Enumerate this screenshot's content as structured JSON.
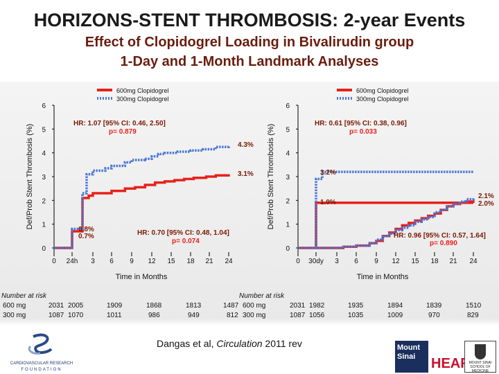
{
  "title": "HORIZONS-STENT THROMBOSIS: 2-year Events",
  "subtitle_line1": "Effect of Clopidogrel Loading in Bivalirudin group",
  "subtitle_line2": "1-Day and 1-Month Landmark Analyses",
  "colors": {
    "red": "#e8201a",
    "blue": "#4a78d6",
    "hr": "#7b1800"
  },
  "chart_data": [
    {
      "type": "line",
      "step": true,
      "ylabel": "Def/Prob Stent Thrombosis (%)",
      "xlabel": "Time in Months",
      "xlim": [
        0,
        24
      ],
      "ylim": [
        0,
        6
      ],
      "xticks": [
        0,
        1,
        3,
        6,
        9,
        12,
        15,
        18,
        21,
        24
      ],
      "xtick_labels": [
        "0",
        "24h",
        "3",
        "6",
        "9",
        "12",
        "15",
        "18",
        "21",
        "24"
      ],
      "yticks": [
        0,
        1,
        2,
        3,
        4,
        5,
        6
      ],
      "ytick_labels": [
        "0",
        "1",
        "2",
        "3",
        "4",
        "5",
        "6"
      ],
      "legend": {
        "position": "top-left",
        "entries": [
          "600mg Clopidogrel",
          "300mg Clopidogrel"
        ]
      },
      "series": [
        {
          "name": "600mg Clopidogrel",
          "style": "solid",
          "points": [
            [
              0,
              0
            ],
            [
              0.7,
              0
            ],
            [
              1.0,
              0.7
            ],
            [
              1.6,
              0.7
            ],
            [
              2.0,
              2.1
            ],
            [
              2.6,
              2.2
            ],
            [
              3,
              2.3
            ],
            [
              5,
              2.3
            ],
            [
              6,
              2.4
            ],
            [
              8,
              2.5
            ],
            [
              9.5,
              2.55
            ],
            [
              11,
              2.65
            ],
            [
              12.5,
              2.75
            ],
            [
              14,
              2.8
            ],
            [
              15.5,
              2.85
            ],
            [
              17,
              2.9
            ],
            [
              18.5,
              2.95
            ],
            [
              20.5,
              3.0
            ],
            [
              22,
              3.05
            ],
            [
              24,
              3.1
            ]
          ]
        },
        {
          "name": "300mg Clopidogrel",
          "style": "dotted",
          "points": [
            [
              0,
              0
            ],
            [
              0.7,
              0
            ],
            [
              1.0,
              0.8
            ],
            [
              1.6,
              0.8
            ],
            [
              2.0,
              2.3
            ],
            [
              2.4,
              3.1
            ],
            [
              3,
              3.25
            ],
            [
              5,
              3.35
            ],
            [
              6,
              3.45
            ],
            [
              8,
              3.6
            ],
            [
              9,
              3.7
            ],
            [
              11,
              3.75
            ],
            [
              12,
              3.85
            ],
            [
              13,
              3.95
            ],
            [
              14,
              4.0
            ],
            [
              16,
              4.05
            ],
            [
              18,
              4.1
            ],
            [
              20,
              4.15
            ],
            [
              22,
              4.25
            ],
            [
              24,
              4.3
            ]
          ]
        }
      ],
      "annotations": [
        {
          "text": "HR: 1.07 [95% CI: 0.46, 2.50]",
          "kind": "hr"
        },
        {
          "text": "p= 0.879",
          "kind": "p"
        },
        {
          "text": "4.3%",
          "kind": "end-label"
        },
        {
          "text": "3.1%",
          "kind": "end-label"
        },
        {
          "text": "0.8%",
          "kind": "landmark-label"
        },
        {
          "text": "0.7%",
          "kind": "landmark-label"
        },
        {
          "text": "HR: 0.70 [95% CI: 0.48, 1.04]",
          "kind": "hr"
        },
        {
          "text": "p= 0.074",
          "kind": "p"
        }
      ]
    },
    {
      "type": "line",
      "step": true,
      "ylabel": "Def/Prob Stent Thrombosis (%)",
      "xlabel": "Time in Months",
      "xlim": [
        0,
        24
      ],
      "ylim": [
        0,
        6
      ],
      "xticks": [
        0,
        1,
        3,
        6,
        9,
        12,
        15,
        18,
        21,
        24
      ],
      "xtick_labels": [
        "0",
        "30dy",
        "3",
        "6",
        "9",
        "12",
        "15",
        "18",
        "21",
        "24"
      ],
      "yticks": [
        0,
        1,
        2,
        3,
        4,
        5,
        6
      ],
      "ytick_labels": [
        "0",
        "1",
        "2",
        "3",
        "4",
        "5",
        "6"
      ],
      "legend": {
        "position": "top-right",
        "entries": [
          "600mg Clopidogrel",
          "300mg Clopidogrel"
        ]
      },
      "series": [
        {
          "name": "600mg Clopidogrel",
          "style": "solid",
          "points": [
            [
              0,
              0
            ],
            [
              0.6,
              0
            ],
            [
              1.0,
              1.9
            ],
            [
              3,
              1.9
            ],
            [
              6,
              1.9
            ],
            [
              9,
              1.9
            ],
            [
              12,
              1.9
            ],
            [
              15,
              1.9
            ],
            [
              21,
              1.9
            ],
            [
              24,
              1.9
            ]
          ]
        },
        {
          "name": "300mg Clopidogrel",
          "style": "dotted",
          "points": [
            [
              0,
              0
            ],
            [
              0.6,
              0
            ],
            [
              1.0,
              2.9
            ],
            [
              1.6,
              3.2
            ],
            [
              3,
              3.2
            ],
            [
              24,
              3.2
            ]
          ]
        },
        {
          "name": "600mg Clopidogrel (landmark)",
          "style": "solid",
          "points": [
            [
              1,
              0
            ],
            [
              4,
              0.05
            ],
            [
              6,
              0.1
            ],
            [
              8,
              0.2
            ],
            [
              9,
              0.3
            ],
            [
              10,
              0.5
            ],
            [
              11,
              0.65
            ],
            [
              12,
              0.8
            ],
            [
              13,
              0.95
            ],
            [
              14,
              1.05
            ],
            [
              15,
              1.15
            ],
            [
              16,
              1.25
            ],
            [
              17,
              1.35
            ],
            [
              18,
              1.45
            ],
            [
              19,
              1.6
            ],
            [
              20,
              1.75
            ],
            [
              21,
              1.85
            ],
            [
              22,
              1.9
            ],
            [
              23,
              1.95
            ],
            [
              24,
              2.0
            ]
          ]
        },
        {
          "name": "300mg Clopidogrel (landmark)",
          "style": "dotted",
          "points": [
            [
              1,
              0
            ],
            [
              4,
              0.05
            ],
            [
              6,
              0.1
            ],
            [
              8,
              0.2
            ],
            [
              9,
              0.35
            ],
            [
              10,
              0.5
            ],
            [
              11,
              0.6
            ],
            [
              12,
              0.75
            ],
            [
              13,
              0.85
            ],
            [
              14,
              0.95
            ],
            [
              15,
              1.1
            ],
            [
              16,
              1.2
            ],
            [
              17,
              1.3
            ],
            [
              18,
              1.5
            ],
            [
              19,
              1.6
            ],
            [
              20,
              1.75
            ],
            [
              21,
              1.85
            ],
            [
              22,
              1.95
            ],
            [
              23,
              2.05
            ],
            [
              24,
              2.1
            ]
          ]
        }
      ],
      "annotations": [
        {
          "text": "HR: 0.61 [95% CI: 0.38, 0.96]",
          "kind": "hr"
        },
        {
          "text": "p= 0.033",
          "kind": "p"
        },
        {
          "text": "3.2%",
          "kind": "end-label"
        },
        {
          "text": "1.9%",
          "kind": "end-label"
        },
        {
          "text": "2.1%",
          "kind": "end-label"
        },
        {
          "text": "2.0%",
          "kind": "end-label"
        },
        {
          "text": "HR: 0.96 [95% CI: 0.57, 1.64]",
          "kind": "hr"
        },
        {
          "text": "p= 0.890",
          "kind": "p"
        }
      ]
    }
  ],
  "risk_left": {
    "label": "Number at risk",
    "rows": [
      {
        "label": "600 mg",
        "values": [
          "2031",
          "2005",
          "1909",
          "1868",
          "1813"
        ]
      },
      {
        "label": "300 mg",
        "values": [
          "1087",
          "1070",
          "1011",
          "986",
          "949"
        ]
      }
    ]
  },
  "risk_right": {
    "label": "Number at risk",
    "rows": [
      {
        "label": "600 mg",
        "values": [
          "1487",
          "2031",
          "1982",
          "1935",
          "1894",
          "1839",
          "1510"
        ]
      },
      {
        "label": "300 mg",
        "values": [
          "812",
          "1087",
          "1056",
          "1035",
          "1009",
          "970",
          "829"
        ]
      }
    ]
  },
  "footer": {
    "citation_authors": "Dangas et al,",
    "citation_journal": "Circulation",
    "citation_year": "2011 rev",
    "crf_line1": "CARDIOVASCULAR RESEARCH",
    "crf_line2": "FOUNDATION",
    "sinai_line1": "Mount",
    "sinai_line2": "Sinai",
    "heart": "HEART",
    "school_text": "MOUNT SINAI SCHOOL OF MEDICINE"
  }
}
